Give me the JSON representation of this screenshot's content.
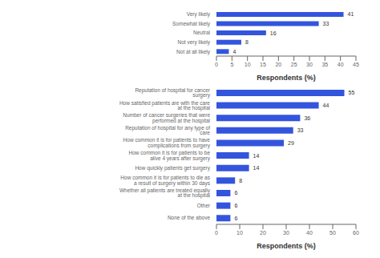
{
  "chart_data": [
    {
      "type": "bar",
      "orientation": "horizontal",
      "categories": [
        "Very likely",
        "Somewhat likely",
        "Neutral",
        "Not very likely",
        "Not at all likely"
      ],
      "values": [
        41,
        33,
        16,
        8,
        4
      ],
      "xlim": [
        0,
        45
      ],
      "xticks": [
        0,
        5,
        10,
        15,
        20,
        25,
        30,
        35,
        40,
        45
      ],
      "xlabel": "Respondents (%)",
      "color": "#3355dd",
      "data_labels": true
    },
    {
      "type": "bar",
      "orientation": "horizontal",
      "categories": [
        "Reputation of hospital for cancer surgery",
        "How satisfied patients are with the care at the hospital",
        "Number of cancer surgeries that were performed at the hospital",
        "Reputation of hospital for any type of care",
        "How common it is for patients to have complications from surgery",
        "How common it is for patients to be alive 4 years after surgery",
        "How quickly patients get surgery",
        "How common it is for patients to die as a result of surgery within 30 days",
        "Whether all patients are treated equally at the hospital",
        "Other",
        "None of the above"
      ],
      "values": [
        55,
        44,
        36,
        33,
        29,
        14,
        14,
        8,
        6,
        6,
        6
      ],
      "xlim": [
        0,
        60
      ],
      "xticks": [
        0,
        10,
        20,
        30,
        40,
        50,
        60
      ],
      "xlabel": "Respondents (%)",
      "color": "#3355dd",
      "data_labels": true
    }
  ]
}
